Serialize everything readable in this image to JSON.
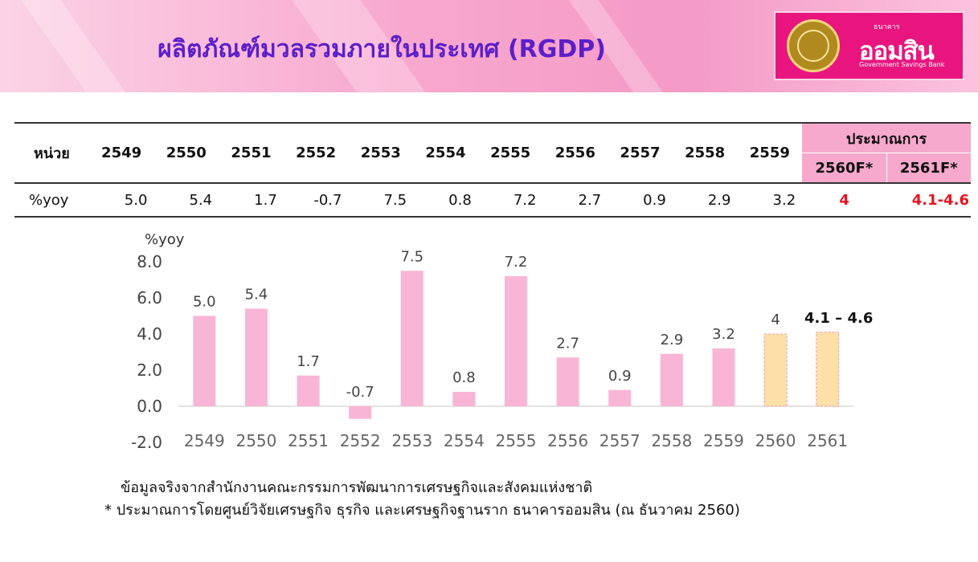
{
  "title": "ผลิตภัณฑ์มวลรวมภายในประเทศ (RGDP)",
  "logo": {
    "small_text": "ธนาคาร",
    "name": "ออมสิน",
    "english": "Government Savings Bank"
  },
  "table": {
    "unit_label": "หน่วย",
    "years": [
      "2549",
      "2550",
      "2551",
      "2552",
      "2553",
      "2554",
      "2555",
      "2556",
      "2557",
      "2558",
      "2559"
    ],
    "forecast_group_label": "ประมาณการ",
    "forecast_years": [
      "2560F*",
      "2561F*"
    ],
    "row_label": "%yoy",
    "values": [
      "5.0",
      "5.4",
      "1.7",
      "-0.7",
      "7.5",
      "0.8",
      "7.2",
      "2.7",
      "0.9",
      "2.9",
      "3.2"
    ],
    "forecast_values": [
      "4",
      "4.1-4.6"
    ]
  },
  "chart_data": {
    "type": "bar",
    "ylabel": "%yoy",
    "categories": [
      "2549",
      "2550",
      "2551",
      "2552",
      "2553",
      "2554",
      "2555",
      "2556",
      "2557",
      "2558",
      "2559",
      "2560",
      "2561"
    ],
    "values": [
      5.0,
      5.4,
      1.7,
      -0.7,
      7.5,
      0.8,
      7.2,
      2.7,
      0.9,
      2.9,
      3.2,
      4.0,
      4.1
    ],
    "data_labels": [
      "5.0",
      "5.4",
      "1.7",
      "-0.7",
      "7.5",
      "0.8",
      "7.2",
      "2.7",
      "0.9",
      "2.9",
      "3.2",
      "4",
      "4.1 – 4.6"
    ],
    "forecast": [
      false,
      false,
      false,
      false,
      false,
      false,
      false,
      false,
      false,
      false,
      false,
      true,
      true
    ],
    "yticks": [
      "-2.0",
      "0.0",
      "2.0",
      "4.0",
      "6.0",
      "8.0"
    ],
    "ylim": [
      -2,
      8
    ],
    "grid": false,
    "colors": {
      "actual": "#f8b5d6",
      "forecast": "#fde0a8",
      "forecast_border": "#e89bb8",
      "text": "#444444"
    }
  },
  "footnotes": [
    "ข้อมูลจริงจากสำนักงานคณะกรรมการพัฒนาการเศรษฐกิจและสังคมแห่งชาติ",
    "* ประมาณการโดยศูนย์วิจัยเศรษฐกิจ ธุรกิจ และเศรษฐกิจฐานราก ธนาคารออมสิน (ณ ธันวาคม 2560)"
  ]
}
